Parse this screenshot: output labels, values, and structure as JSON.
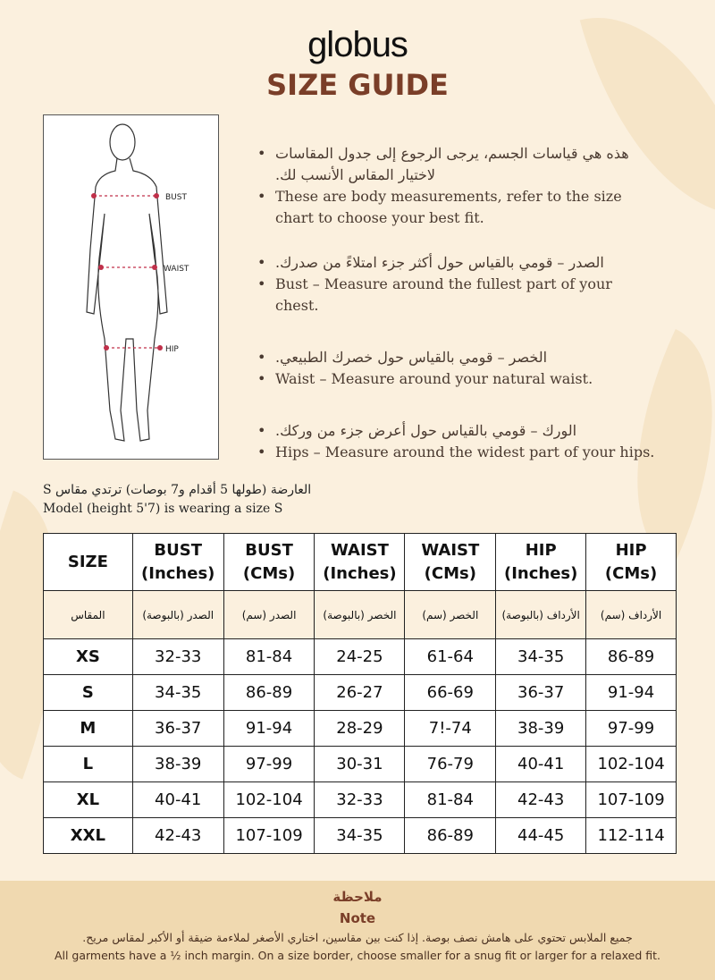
{
  "brand": "globus",
  "title": "SIZE GUIDE",
  "figure": {
    "labels": [
      "BUST",
      "WAIST",
      "HIP"
    ]
  },
  "bullets": [
    {
      "ar": "هذه هي قياسات الجسم، يرجى الرجوع إلى جدول المقاسات لاختيار المقاس الأنسب لك.",
      "en": "These are body measurements, refer to the size chart to choose your best fit."
    },
    {
      "ar": "الصدر – قومي بالقياس حول أكثر جزء امتلاءً من صدرك.",
      "en": "Bust – Measure around the fullest part of your chest."
    },
    {
      "ar": "الخصر – قومي بالقياس حول خصرك الطبيعي.",
      "en": "Waist – Measure around your natural waist."
    },
    {
      "ar": "الورك – قومي بالقياس حول أعرض جزء من وركك.",
      "en": "Hips – Measure around the widest part of your hips."
    }
  ],
  "model": {
    "ar": "العارضة (طولها 5 أقدام و7 بوصات) ترتدي مقاس S",
    "en": "Model (height 5'7) is wearing a size S"
  },
  "table": {
    "headers": [
      [
        "SIZE",
        ""
      ],
      [
        "BUST",
        "(Inches)"
      ],
      [
        "BUST",
        "(CMs)"
      ],
      [
        "WAIST",
        "(Inches)"
      ],
      [
        "WAIST",
        "(CMs)"
      ],
      [
        "HIP",
        "(Inches)"
      ],
      [
        "HIP",
        "(CMs)"
      ]
    ],
    "headers_ar": [
      "المقاس",
      "الصدر (بالبوصة)",
      "الصدر (سم)",
      "الخصر (بالبوصة)",
      "الخصر (سم)",
      "الأرداف (بالبوصة)",
      "الأرداف (سم)"
    ],
    "rows": [
      [
        "XS",
        "32-33",
        "81-84",
        "24-25",
        "61-64",
        "34-35",
        "86-89"
      ],
      [
        "S",
        "34-35",
        "86-89",
        "26-27",
        "66-69",
        "36-37",
        "91-94"
      ],
      [
        "M",
        "36-37",
        "91-94",
        "28-29",
        "7!-74",
        "38-39",
        "97-99"
      ],
      [
        "L",
        "38-39",
        "97-99",
        "30-31",
        "76-79",
        "40-41",
        "102-104"
      ],
      [
        "XL",
        "40-41",
        "102-104",
        "32-33",
        "81-84",
        "42-43",
        "107-109"
      ],
      [
        "XXL",
        "42-43",
        "107-109",
        "34-35",
        "86-89",
        "44-45",
        "112-114"
      ]
    ]
  },
  "note": {
    "title_ar": "ملاحظة",
    "title": "Note",
    "text_ar": "جميع الملابس تحتوي على هامش نصف بوصة. إذا كنت بين مقاسين، اختاري الأصغر لملاءمة ضيقة أو الأكبر لمقاس مريح.",
    "text": "All garments have a ½ inch margin. On a size border, choose smaller for a snug fit or larger for a relaxed fit."
  }
}
